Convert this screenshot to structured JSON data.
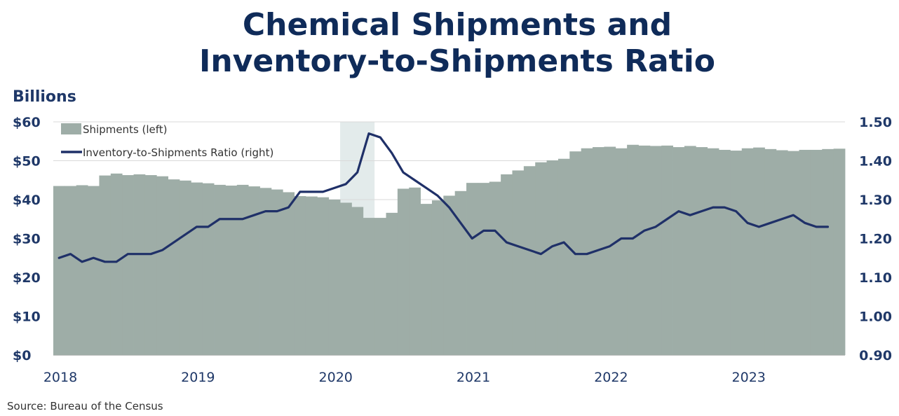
{
  "chart_data": {
    "type": "bar+line",
    "title": [
      "Chemical Shipments and",
      "Inventory-to-Shipments Ratio"
    ],
    "units_label": "Billions",
    "source": "Source:  Bureau of the Census",
    "left_axis": {
      "min": 0,
      "max": 60,
      "ticks": [
        "$0",
        "$10",
        "$20",
        "$30",
        "$40",
        "$50",
        "$60"
      ]
    },
    "right_axis": {
      "min": 0.9,
      "max": 1.5,
      "ticks": [
        "0.90",
        "1.00",
        "1.10",
        "1.20",
        "1.30",
        "1.40",
        "1.50"
      ]
    },
    "x_axis": {
      "labels": [
        "2018",
        "2019",
        "2020",
        "2021",
        "2022",
        "2023"
      ]
    },
    "grid": "horizontal",
    "legend_placement": "top-left",
    "recession_shading": {
      "start": "2020-02",
      "end": "2020-04"
    },
    "colors": {
      "shipments": "#9eada7",
      "ratio": "#1f3068",
      "recession": "#e3ebeb",
      "text": "#1f3868",
      "title": "#0f2b59"
    },
    "series": [
      {
        "name": "Shipments (left)",
        "type": "bar",
        "start": "2018-01",
        "values": [
          43.5,
          43.5,
          43.7,
          43.5,
          46.2,
          46.7,
          46.3,
          46.5,
          46.3,
          46.0,
          45.2,
          44.9,
          44.4,
          44.2,
          43.8,
          43.6,
          43.8,
          43.4,
          43.0,
          42.6,
          41.9,
          40.9,
          40.8,
          40.6,
          40.0,
          39.2,
          38.1,
          35.3,
          35.3,
          36.6,
          42.8,
          43.1,
          38.9,
          39.8,
          41.0,
          42.2,
          44.3,
          44.3,
          44.6,
          46.5,
          47.5,
          48.6,
          49.6,
          50.1,
          50.5,
          52.4,
          53.2,
          53.5,
          53.6,
          53.2,
          54.1,
          53.9,
          53.8,
          53.9,
          53.5,
          53.8,
          53.5,
          53.2,
          52.8,
          52.6,
          53.2,
          53.4,
          53.0,
          52.7,
          52.5,
          52.8,
          52.8,
          53.0,
          53.1
        ]
      },
      {
        "name": "Inventory-to-Shipments Ratio (right)",
        "type": "line",
        "start": "2018-01",
        "values": [
          1.15,
          1.16,
          1.14,
          1.15,
          1.14,
          1.14,
          1.16,
          1.16,
          1.16,
          1.17,
          1.19,
          1.21,
          1.23,
          1.23,
          1.25,
          1.25,
          1.25,
          1.26,
          1.27,
          1.27,
          1.28,
          1.32,
          1.32,
          1.32,
          1.33,
          1.34,
          1.37,
          1.47,
          1.46,
          1.42,
          1.37,
          1.35,
          1.33,
          1.31,
          1.28,
          1.24,
          1.2,
          1.22,
          1.22,
          1.19,
          1.18,
          1.17,
          1.16,
          1.18,
          1.19,
          1.16,
          1.16,
          1.17,
          1.18,
          1.2,
          1.2,
          1.22,
          1.23,
          1.25,
          1.27,
          1.26,
          1.27,
          1.28,
          1.28,
          1.27,
          1.24,
          1.23,
          1.24,
          1.25,
          1.26,
          1.24,
          1.23,
          1.23
        ]
      }
    ]
  }
}
